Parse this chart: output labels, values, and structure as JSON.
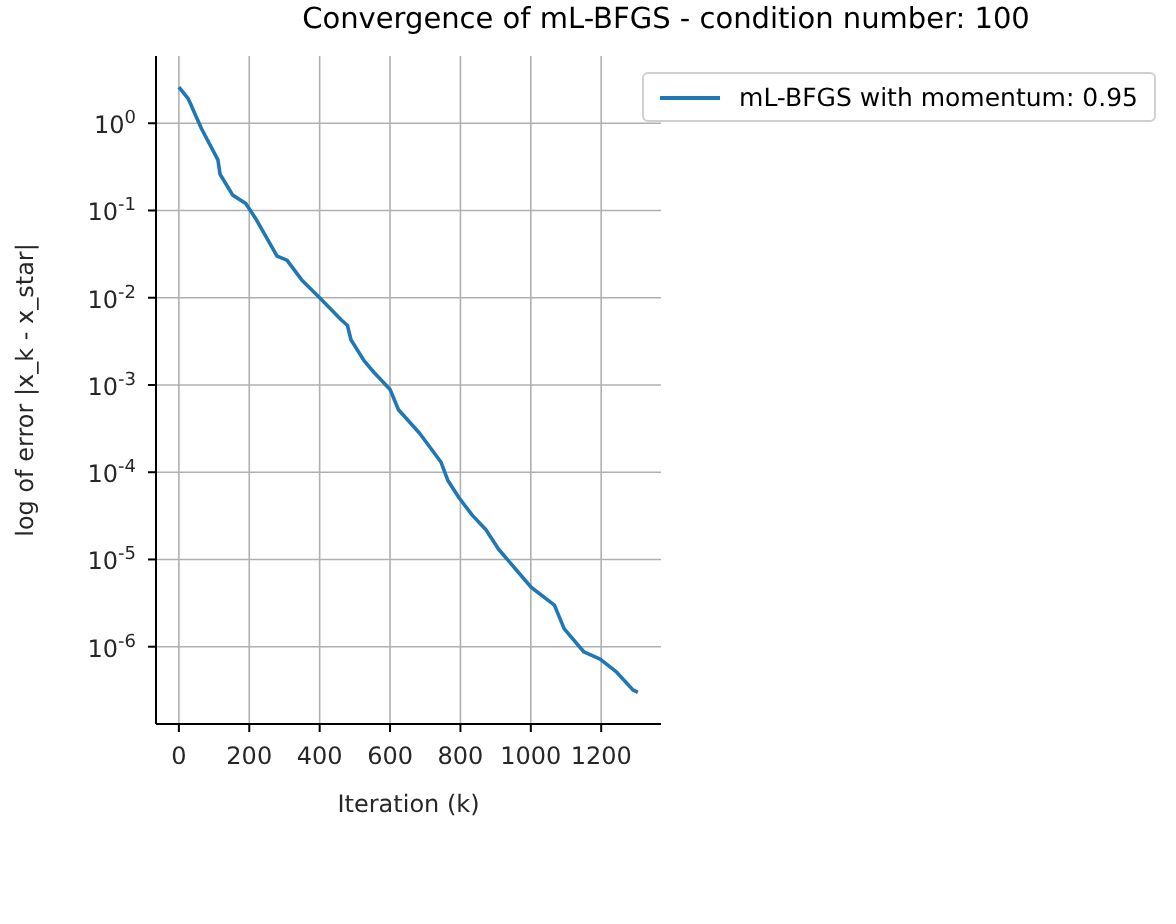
{
  "chart_data": {
    "type": "line",
    "title": "Convergence of mL-BFGS - condition number: 100",
    "xlabel": "Iteration (k)",
    "ylabel": "log of error |x_k - x_star|",
    "x": [
      0,
      27,
      64,
      111,
      117,
      153,
      190,
      218,
      279,
      307,
      349,
      400,
      461,
      479,
      489,
      526,
      554,
      600,
      624,
      684,
      745,
      764,
      796,
      834,
      872,
      909,
      1001,
      1067,
      1095,
      1151,
      1197,
      1244,
      1290,
      1304
    ],
    "series": [
      {
        "name": "mL-BFGS with momentum: 0.95",
        "color": "#1f77b4",
        "values": [
          2.6,
          1.9,
          0.87,
          0.38,
          0.26,
          0.15,
          0.12,
          0.081,
          0.03,
          0.027,
          0.016,
          0.01,
          0.0056,
          0.0048,
          0.0033,
          0.0019,
          0.0014,
          0.00089,
          0.00052,
          0.00028,
          0.00013,
          8.1e-05,
          5.1e-05,
          3.2e-05,
          2.2e-05,
          1.3e-05,
          4.8e-06,
          3e-06,
          1.6e-06,
          8.7e-07,
          7.2e-07,
          5.1e-07,
          3.2e-07,
          3e-07
        ]
      }
    ],
    "log": "y",
    "xlim": [
      -65,
      1370
    ],
    "xticks": [
      0,
      200,
      400,
      600,
      800,
      1000,
      1200
    ],
    "ylim": [
      1.3e-07,
      5.9
    ],
    "yticks": [
      {
        "value": 1e-06,
        "label": "10$^{-6}$"
      },
      {
        "value": 1e-05,
        "label": "10$^{-5}$"
      },
      {
        "value": 0.0001,
        "label": "10$^{-4}$"
      },
      {
        "value": 0.001,
        "label": "10$^{-3}$"
      },
      {
        "value": 0.01,
        "label": "10$^{-2}$"
      },
      {
        "value": 0.1,
        "label": "10$^{-1}$"
      },
      {
        "value": 1,
        "label": "10$^{0}$"
      }
    ],
    "grid": true,
    "legend": "top right",
    "marker": "none",
    "line_style": "solid"
  }
}
